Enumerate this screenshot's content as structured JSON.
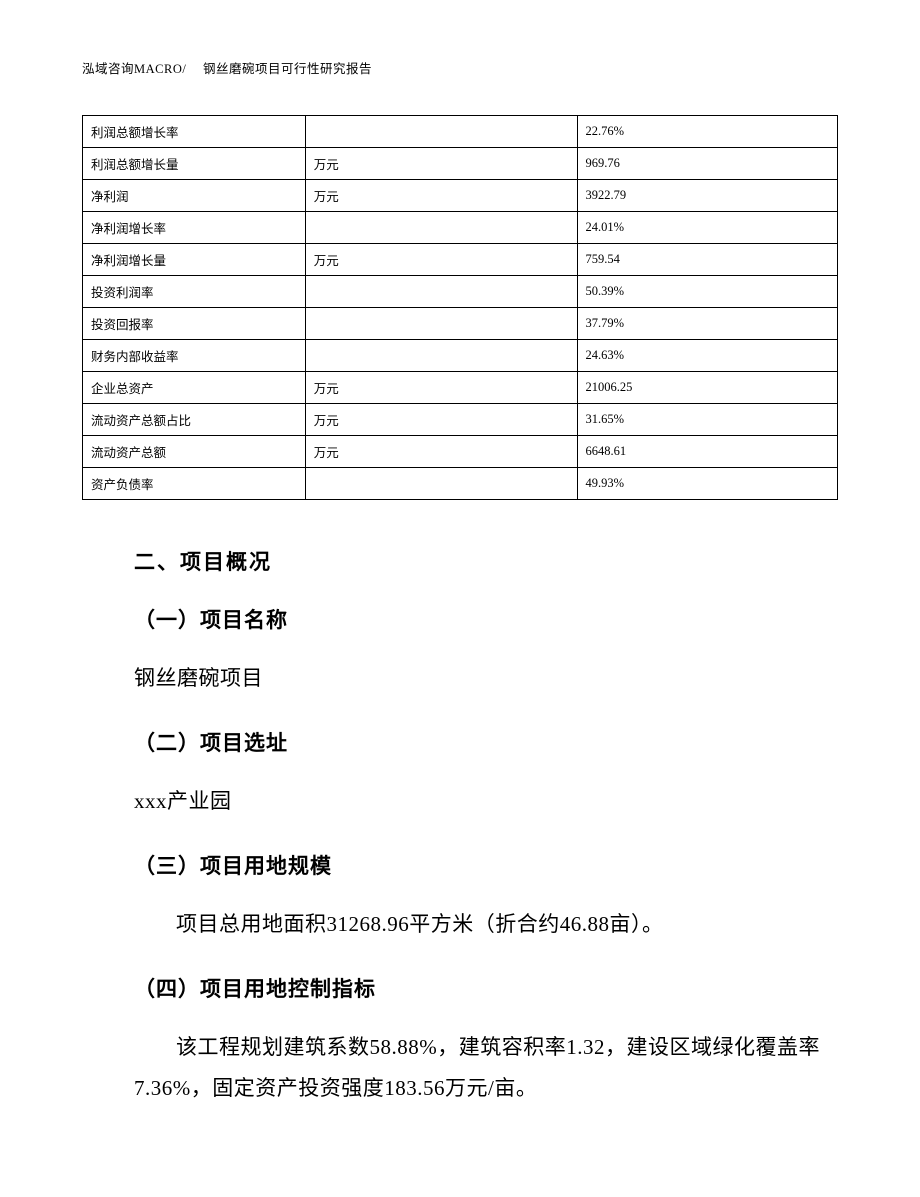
{
  "header": {
    "text": "泓域咨询MACRO/　 钢丝磨碗项目可行性研究报告"
  },
  "table": {
    "columns": [
      {
        "width": "29.5%"
      },
      {
        "width": "36%"
      },
      {
        "width": "34.5%"
      }
    ],
    "border_color": "#000000",
    "font_size": 12.5,
    "rows": [
      [
        "利润总额增长率",
        "",
        "22.76%"
      ],
      [
        "利润总额增长量",
        "万元",
        "969.76"
      ],
      [
        "净利润",
        "万元",
        "3922.79"
      ],
      [
        "净利润增长率",
        "",
        "24.01%"
      ],
      [
        "净利润增长量",
        "万元",
        "759.54"
      ],
      [
        "投资利润率",
        "",
        "50.39%"
      ],
      [
        "投资回报率",
        "",
        "37.79%"
      ],
      [
        "财务内部收益率",
        "",
        "24.63%"
      ],
      [
        "企业总资产",
        "万元",
        "21006.25"
      ],
      [
        "流动资产总额占比",
        "万元",
        "31.65%"
      ],
      [
        "流动资产总额",
        "万元",
        "6648.61"
      ],
      [
        "资产负债率",
        "",
        "49.93%"
      ]
    ]
  },
  "sections": {
    "main_heading": "二、项目概况",
    "items": [
      {
        "heading": "（一）项目名称",
        "body": "钢丝磨碗项目",
        "indent": false
      },
      {
        "heading": "（二）项目选址",
        "body": "xxx产业园",
        "indent": false
      },
      {
        "heading": "（三）项目用地规模",
        "body": "项目总用地面积31268.96平方米（折合约46.88亩）。",
        "indent": true
      },
      {
        "heading": "（四）项目用地控制指标",
        "body": "该工程规划建筑系数58.88%，建筑容积率1.32，建设区域绿化覆盖率7.36%，固定资产投资强度183.56万元/亩。",
        "indent": true
      }
    ]
  },
  "styles": {
    "page_bg": "#ffffff",
    "text_color": "#000000",
    "heading_font": "SimHei",
    "body_font": "SimSun",
    "heading_fontsize": 21,
    "body_fontsize": 21,
    "table_fontsize": 12.5
  }
}
